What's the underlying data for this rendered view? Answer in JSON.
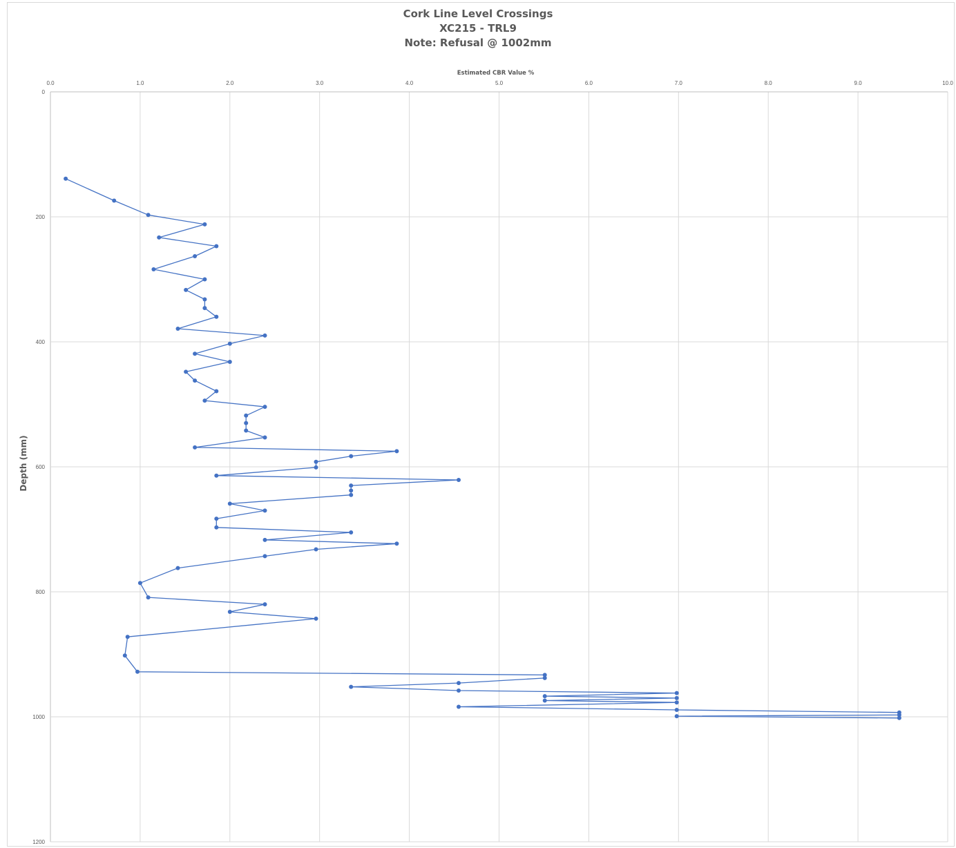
{
  "chart_data": {
    "type": "line",
    "title": [
      "Cork Line Level Crossings",
      "XC215 - TRL9",
      "Note: Refusal @ 1002mm"
    ],
    "xlabel": "Estimated CBR Value %",
    "ylabel": "Depth (mm)",
    "xlim": [
      0,
      10
    ],
    "ylim": [
      0,
      1200
    ],
    "y_inverted": true,
    "x_axis_position": "top",
    "grid": true,
    "legend": "none",
    "x_ticks": [
      "0.0",
      "1.0",
      "2.0",
      "3.0",
      "4.0",
      "5.0",
      "6.0",
      "7.0",
      "8.0",
      "9.0",
      "10.0"
    ],
    "y_ticks": [
      "0",
      "200",
      "400",
      "600",
      "800",
      "1000",
      "1200"
    ],
    "series": [
      {
        "color": "#4472c4",
        "points": [
          [
            0.17,
            139
          ],
          [
            0.71,
            174
          ],
          [
            1.09,
            197
          ],
          [
            1.72,
            212
          ],
          [
            1.21,
            233
          ],
          [
            1.85,
            247
          ],
          [
            1.61,
            263
          ],
          [
            1.15,
            284
          ],
          [
            1.72,
            300
          ],
          [
            1.51,
            317
          ],
          [
            1.72,
            332
          ],
          [
            1.72,
            346
          ],
          [
            1.85,
            360
          ],
          [
            1.42,
            379
          ],
          [
            2.39,
            390
          ],
          [
            2.0,
            403
          ],
          [
            1.61,
            419
          ],
          [
            2.0,
            432
          ],
          [
            1.51,
            448
          ],
          [
            1.61,
            462
          ],
          [
            1.85,
            479
          ],
          [
            1.72,
            494
          ],
          [
            2.39,
            504
          ],
          [
            2.18,
            518
          ],
          [
            2.18,
            530
          ],
          [
            2.18,
            542
          ],
          [
            2.39,
            553
          ],
          [
            1.61,
            569
          ],
          [
            3.86,
            575
          ],
          [
            3.35,
            583
          ],
          [
            2.96,
            592
          ],
          [
            2.96,
            601
          ],
          [
            1.85,
            614
          ],
          [
            4.55,
            621
          ],
          [
            3.35,
            630
          ],
          [
            3.35,
            638
          ],
          [
            3.35,
            645
          ],
          [
            2.0,
            659
          ],
          [
            2.39,
            670
          ],
          [
            1.85,
            683
          ],
          [
            1.85,
            697
          ],
          [
            3.35,
            705
          ],
          [
            2.39,
            717
          ],
          [
            3.86,
            723
          ],
          [
            2.96,
            732
          ],
          [
            2.39,
            743
          ],
          [
            1.42,
            762
          ],
          [
            1.0,
            786
          ],
          [
            1.09,
            809
          ],
          [
            2.39,
            820
          ],
          [
            2.0,
            832
          ],
          [
            2.96,
            843
          ],
          [
            0.86,
            872
          ],
          [
            0.83,
            902
          ],
          [
            0.97,
            928
          ],
          [
            5.51,
            933
          ],
          [
            5.51,
            938
          ],
          [
            4.55,
            946
          ],
          [
            3.35,
            952
          ],
          [
            4.55,
            958
          ],
          [
            6.98,
            962
          ],
          [
            5.51,
            967
          ],
          [
            6.98,
            970
          ],
          [
            5.51,
            974
          ],
          [
            6.98,
            977
          ],
          [
            4.55,
            984
          ],
          [
            6.98,
            989
          ],
          [
            9.46,
            993
          ],
          [
            9.46,
            997
          ],
          [
            6.98,
            999
          ],
          [
            9.46,
            1002
          ]
        ]
      }
    ]
  }
}
